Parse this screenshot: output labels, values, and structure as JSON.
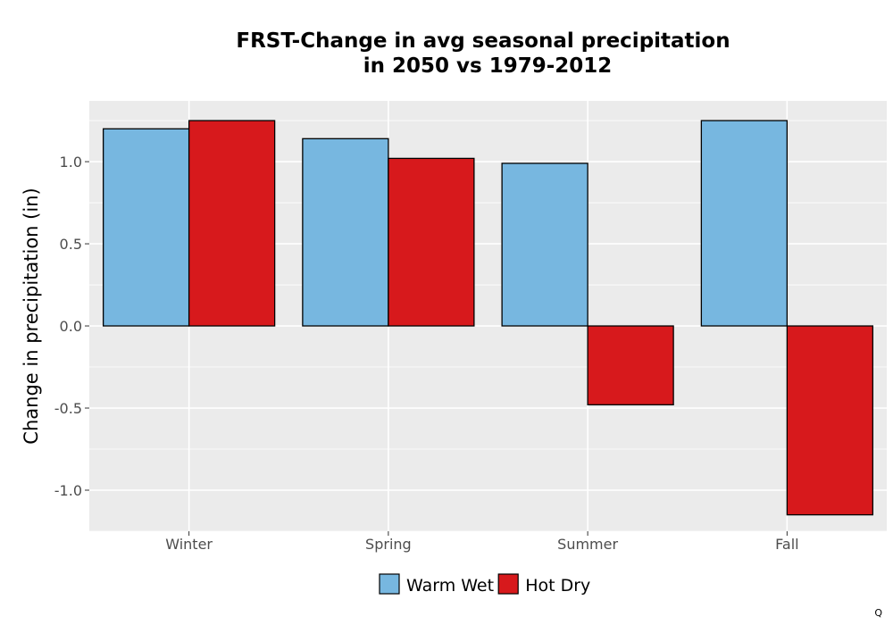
{
  "chart_data": {
    "type": "bar",
    "title_lines": [
      "FRST-Change in avg seasonal precipitation",
      "in 2050 vs 1979-2012"
    ],
    "xlabel": "",
    "ylabel": "Change in precipitation (in)",
    "categories": [
      "Winter",
      "Spring",
      "Summer",
      "Fall"
    ],
    "series": [
      {
        "name": "Warm Wet",
        "color": "#77b7e0",
        "values": [
          1.2,
          1.14,
          0.99,
          1.25
        ]
      },
      {
        "name": "Hot Dry",
        "color": "#d7191c",
        "values": [
          1.25,
          1.02,
          -0.48,
          -1.15
        ]
      }
    ],
    "ylim": [
      -1.25,
      1.37
    ],
    "yticks": [
      -1.0,
      -0.5,
      0.0,
      0.5,
      1.0
    ],
    "ytick_labels": [
      "-1.0",
      "-0.5",
      "0.0",
      "0.5",
      "1.0"
    ],
    "grid": true,
    "legend_position": "bottom",
    "corner_mark": "Q"
  }
}
